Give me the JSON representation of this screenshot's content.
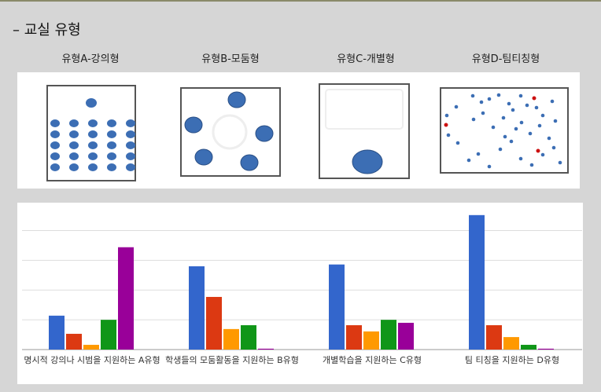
{
  "section_title": "– 교실 유형",
  "room_types": [
    "유형A-강의형",
    "유형B-모둠형",
    "유형C-개별형",
    "유형D-팀티칭형"
  ],
  "chart_data": {
    "type": "bar",
    "categories": [
      "명시적 강의나 시범을 지원하는 A유형",
      "학생들의 모둠활동을 지원하는 B유형",
      "개별학습을 지원하는 C유형",
      "팀 티칭을 지원하는 D유형"
    ],
    "series": [
      {
        "color": "#3366cc",
        "values": [
          1.14,
          2.8,
          2.86,
          4.52
        ]
      },
      {
        "color": "#dc3912",
        "values": [
          0.53,
          1.77,
          0.82,
          0.82
        ]
      },
      {
        "color": "#ff9900",
        "values": [
          0.16,
          0.69,
          0.61,
          0.42
        ]
      },
      {
        "color": "#109618",
        "values": [
          1.0,
          0.82,
          1.0,
          0.16
        ]
      },
      {
        "color": "#990099",
        "values": [
          3.44,
          0.03,
          0.9,
          0.03
        ]
      }
    ],
    "ylim": [
      0,
      4.7
    ],
    "yticks": [
      0,
      1,
      2,
      3,
      4
    ],
    "grid": true
  }
}
